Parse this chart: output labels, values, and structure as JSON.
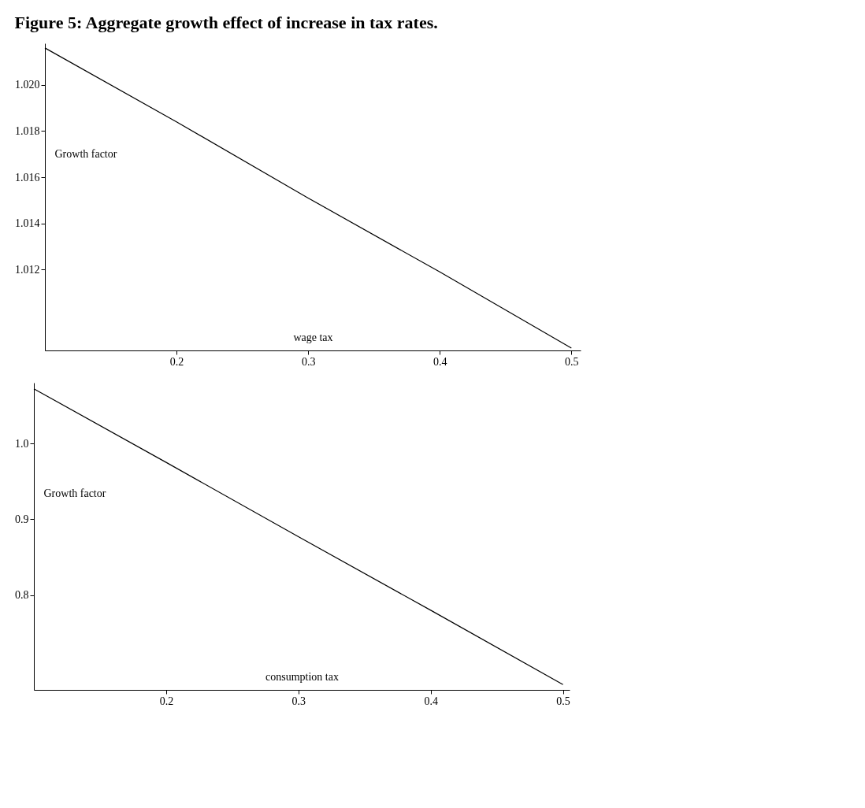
{
  "chart_data": [
    {
      "type": "line",
      "title": "Figure 5: Aggregate growth effect of increase in tax rates.",
      "xlabel": "wage tax",
      "ylabel": "Growth factor",
      "x": [
        0.1,
        0.2,
        0.3,
        0.4,
        0.5
      ],
      "series": [
        {
          "color": "#000000",
          "values": [
            1.0216,
            1.0184,
            1.0151,
            1.0119,
            1.0086
          ]
        }
      ],
      "xlim": [
        0.1,
        0.507
      ],
      "xticks": [
        0.2,
        0.3,
        0.4,
        0.5
      ],
      "ylim": [
        1.0085,
        1.0218
      ],
      "yticks": [
        {
          "value": 1.012,
          "label": "1.012"
        },
        {
          "value": 1.014,
          "label": "1.014"
        },
        {
          "value": 1.016,
          "label": "1.016"
        },
        {
          "value": 1.018,
          "label": "1.018"
        },
        {
          "value": 1.02,
          "label": "1.020"
        }
      ],
      "grid": false
    },
    {
      "type": "line",
      "xlabel": "consumption tax",
      "ylabel": "Growth factor",
      "x": [
        0.1,
        0.2,
        0.3,
        0.4,
        0.5
      ],
      "series": [
        {
          "color": "#000000",
          "values": [
            1.072,
            0.975,
            0.877,
            0.78,
            0.682
          ]
        }
      ],
      "xlim": [
        0.1,
        0.505
      ],
      "xticks": [
        0.2,
        0.3,
        0.4,
        0.5
      ],
      "ylim": [
        0.675,
        1.08
      ],
      "yticks": [
        {
          "value": 0.8,
          "label": "0.8"
        },
        {
          "value": 0.9,
          "label": "0.9"
        },
        {
          "value": 1.0,
          "label": "1.0"
        }
      ],
      "grid": false
    }
  ]
}
